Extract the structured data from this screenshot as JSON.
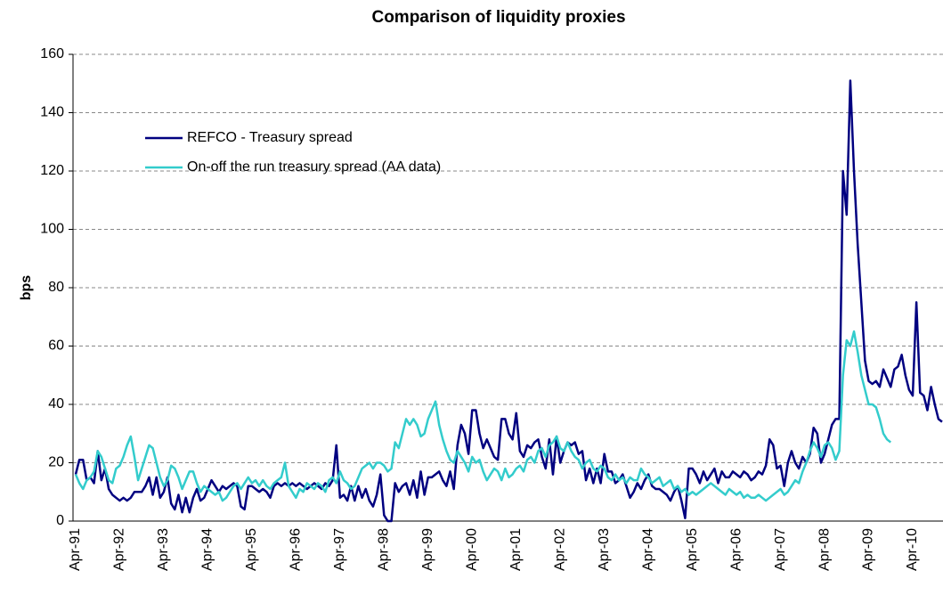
{
  "chart_data": {
    "type": "line",
    "title": "Comparison of liquidity proxies",
    "y_label": "bps",
    "categories": [
      "Apr-91",
      null,
      null,
      null,
      null,
      null,
      null,
      null,
      null,
      null,
      null,
      null,
      "Apr-92",
      null,
      null,
      null,
      null,
      null,
      null,
      null,
      null,
      null,
      null,
      null,
      "Apr-93",
      null,
      null,
      null,
      null,
      null,
      null,
      null,
      null,
      null,
      null,
      null,
      "Apr-94",
      null,
      null,
      null,
      null,
      null,
      null,
      null,
      null,
      null,
      null,
      null,
      "Apr-95",
      null,
      null,
      null,
      null,
      null,
      null,
      null,
      null,
      null,
      null,
      null,
      "Apr-96",
      null,
      null,
      null,
      null,
      null,
      null,
      null,
      null,
      null,
      null,
      null,
      "Apr-97",
      null,
      null,
      null,
      null,
      null,
      null,
      null,
      null,
      null,
      null,
      null,
      "Apr-98",
      null,
      null,
      null,
      null,
      null,
      null,
      null,
      null,
      null,
      null,
      null,
      "Apr-99",
      null,
      null,
      null,
      null,
      null,
      null,
      null,
      null,
      null,
      null,
      null,
      "Apr-00",
      null,
      null,
      null,
      null,
      null,
      null,
      null,
      null,
      null,
      null,
      null,
      "Apr-01",
      null,
      null,
      null,
      null,
      null,
      null,
      null,
      null,
      null,
      null,
      null,
      "Apr-02",
      null,
      null,
      null,
      null,
      null,
      null,
      null,
      null,
      null,
      null,
      null,
      "Apr-03",
      null,
      null,
      null,
      null,
      null,
      null,
      null,
      null,
      null,
      null,
      null,
      "Apr-04",
      null,
      null,
      null,
      null,
      null,
      null,
      null,
      null,
      null,
      null,
      null,
      "Apr-05",
      null,
      null,
      null,
      null,
      null,
      null,
      null,
      null,
      null,
      null,
      null,
      "Apr-06",
      null,
      null,
      null,
      null,
      null,
      null,
      null,
      null,
      null,
      null,
      null,
      "Apr-07",
      null,
      null,
      null,
      null,
      null,
      null,
      null,
      null,
      null,
      null,
      null,
      "Apr-08",
      null,
      null,
      null,
      null,
      null,
      null,
      null,
      null,
      null,
      null,
      null,
      "Apr-09",
      null,
      null,
      null,
      null,
      null,
      null,
      null,
      null,
      null,
      null,
      null,
      "Apr-10",
      null,
      null,
      null,
      null,
      null,
      null,
      null,
      null
    ],
    "series": [
      {
        "name": "REFCO - Treasury spread",
        "color": "#000080",
        "values": [
          16,
          21,
          21,
          14,
          15,
          13,
          24,
          14,
          18,
          11,
          9,
          8,
          7,
          8,
          7,
          8,
          10,
          10,
          10,
          12,
          15,
          9,
          15,
          8,
          10,
          15,
          6,
          4,
          9,
          3,
          8,
          3,
          8,
          11,
          7,
          8,
          11,
          14,
          12,
          10,
          12,
          11,
          12,
          13,
          12,
          5,
          4,
          12,
          12,
          11,
          10,
          11,
          10,
          8,
          12,
          13,
          12,
          13,
          12,
          13,
          12,
          13,
          12,
          11,
          12,
          13,
          12,
          11,
          13,
          12,
          14,
          26,
          8,
          9,
          7,
          12,
          7,
          12,
          8,
          11,
          7,
          5,
          9,
          16,
          2,
          0,
          0,
          13,
          10,
          12,
          13,
          9,
          14,
          8,
          17,
          9,
          15,
          15,
          16,
          17,
          14,
          12,
          17,
          11,
          26,
          33,
          30,
          23,
          38,
          38,
          30,
          25,
          28,
          25,
          22,
          21,
          35,
          35,
          30,
          28,
          37,
          24,
          22,
          26,
          25,
          27,
          28,
          22,
          18,
          28,
          16,
          29,
          20,
          24,
          27,
          26,
          27,
          23,
          24,
          14,
          18,
          13,
          18,
          13,
          23,
          17,
          17,
          13,
          14,
          16,
          12,
          8,
          10,
          13,
          11,
          14,
          16,
          12,
          11,
          11,
          10,
          9,
          7,
          10,
          12,
          7,
          1,
          18,
          18,
          16,
          13,
          17,
          14,
          16,
          18,
          13,
          17,
          15,
          15,
          17,
          16,
          15,
          17,
          16,
          14,
          15,
          17,
          16,
          19,
          28,
          26,
          18,
          19,
          12,
          20,
          24,
          20,
          18,
          22,
          20,
          23,
          32,
          30,
          20,
          23,
          28,
          33,
          35,
          35,
          120,
          105,
          151,
          120,
          95,
          75,
          55,
          48,
          47,
          48,
          46,
          52,
          49,
          46,
          52,
          53,
          57,
          50,
          45,
          43,
          75,
          44,
          43,
          38,
          46,
          40,
          35,
          34
        ]
      },
      {
        "name": "On-off the run treasury spread (AA data)",
        "color": "#33CCCC",
        "values": [
          16,
          13,
          11,
          14,
          15,
          17,
          24,
          22,
          18,
          14,
          13,
          18,
          19,
          22,
          26,
          29,
          22,
          14,
          18,
          22,
          26,
          25,
          20,
          15,
          12,
          14,
          19,
          18,
          15,
          11,
          14,
          17,
          17,
          13,
          10,
          12,
          11,
          10,
          9,
          10,
          7,
          8,
          10,
          12,
          13,
          11,
          13,
          15,
          13,
          14,
          12,
          14,
          12,
          11,
          13,
          14,
          15,
          20,
          12,
          10,
          8,
          11,
          10,
          13,
          12,
          11,
          13,
          12,
          10,
          14,
          15,
          13,
          17,
          14,
          13,
          11,
          12,
          15,
          18,
          19,
          20,
          18,
          20,
          20,
          19,
          17,
          18,
          27,
          25,
          30,
          35,
          33,
          35,
          33,
          29,
          30,
          35,
          38,
          41,
          33,
          28,
          24,
          21,
          20,
          24,
          22,
          20,
          17,
          22,
          20,
          21,
          17,
          14,
          16,
          18,
          17,
          14,
          18,
          15,
          16,
          18,
          19,
          17,
          21,
          22,
          20,
          24,
          25,
          22,
          26,
          27,
          29,
          25,
          24,
          27,
          24,
          22,
          21,
          18,
          20,
          21,
          18,
          17,
          19,
          18,
          15,
          14,
          16,
          14,
          15,
          13,
          15,
          14,
          14,
          18,
          16,
          15,
          13,
          14,
          15,
          12,
          13,
          14,
          11,
          12,
          10,
          11,
          9,
          10,
          9,
          10,
          11,
          12,
          13,
          12,
          11,
          10,
          9,
          11,
          10,
          9,
          10,
          8,
          9,
          8,
          8,
          9,
          8,
          7,
          8,
          9,
          10,
          11,
          9,
          10,
          12,
          14,
          13,
          17,
          20,
          24,
          27,
          25,
          22,
          26,
          27,
          25,
          21,
          24,
          50,
          62,
          60,
          65,
          58,
          50,
          45,
          40,
          40,
          39,
          35,
          30,
          28,
          27,
          null,
          null,
          null,
          null,
          null,
          null,
          null,
          null,
          null,
          null,
          null,
          null,
          null,
          null
        ]
      }
    ],
    "ylim": [
      0,
      160
    ],
    "yticks": [
      0,
      20,
      40,
      60,
      80,
      100,
      120,
      140,
      160
    ],
    "grid": true,
    "legend": "upper left"
  }
}
